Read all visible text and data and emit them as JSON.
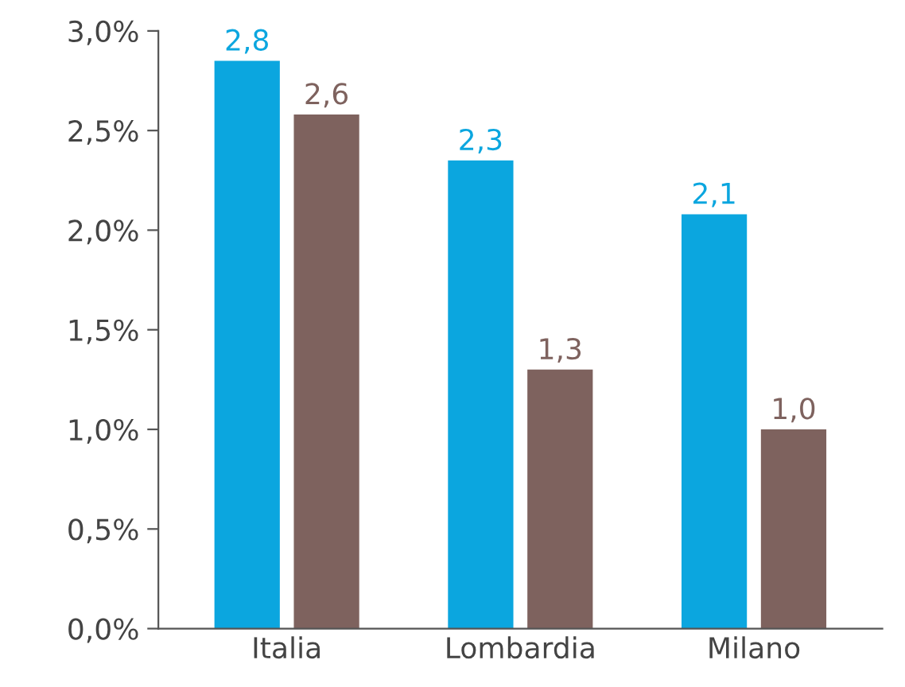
{
  "chart_data": {
    "type": "bar",
    "categories": [
      "Italia",
      "Lombardia",
      "Milano"
    ],
    "series": [
      {
        "color": "#0ba6df",
        "values": [
          2.85,
          2.35,
          2.08
        ],
        "value_labels": [
          "2,8",
          "2,3",
          "2,1"
        ]
      },
      {
        "color": "#7e625e",
        "values": [
          2.58,
          1.3,
          1.0
        ],
        "value_labels": [
          "2,6",
          "1,3",
          "1,0"
        ]
      }
    ],
    "ylim": [
      0,
      3.0
    ],
    "yticks": [
      {
        "value": 0,
        "label": "0,0%"
      },
      {
        "value": 0.5,
        "label": "0,5%"
      },
      {
        "value": 1.0,
        "label": "1,0%"
      },
      {
        "value": 1.5,
        "label": "1,5%"
      },
      {
        "value": 2.0,
        "label": "2,0%"
      },
      {
        "value": 2.5,
        "label": "2,5%"
      },
      {
        "value": 3.0,
        "label": "3,0%"
      }
    ],
    "grid": false,
    "legend": false
  }
}
